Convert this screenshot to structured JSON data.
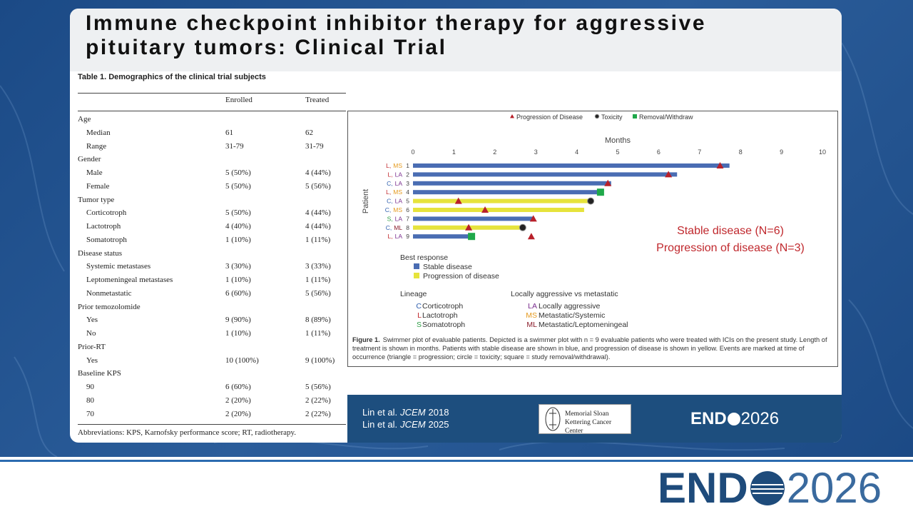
{
  "header": {
    "title": "Immune checkpoint inhibitor therapy for aggressive pituitary tumors: Clinical Trial"
  },
  "table": {
    "title": "Table 1.  Demographics of the clinical trial subjects",
    "headers": [
      "Enrolled",
      "Treated"
    ],
    "sections": [
      {
        "title": "Age",
        "rows": [
          [
            "Median",
            "61",
            "62"
          ],
          [
            "Range",
            "31-79",
            "31-79"
          ]
        ]
      },
      {
        "title": "Gender",
        "rows": [
          [
            "Male",
            "5 (50%)",
            "4 (44%)"
          ],
          [
            "Female",
            "5 (50%)",
            "5 (56%)"
          ]
        ]
      },
      {
        "title": "Tumor type",
        "rows": [
          [
            "Corticotroph",
            "5 (50%)",
            "4 (44%)"
          ],
          [
            "Lactotroph",
            "4 (40%)",
            "4 (44%)"
          ],
          [
            "Somatotroph",
            "1 (10%)",
            "1 (11%)"
          ]
        ]
      },
      {
        "title": "Disease status",
        "rows": [
          [
            "Systemic metastases",
            "3 (30%)",
            "3 (33%)"
          ],
          [
            "Leptomeningeal metastases",
            "1 (10%)",
            "1 (11%)"
          ],
          [
            "Nonmetastatic",
            "6 (60%)",
            "5 (56%)"
          ]
        ]
      },
      {
        "title": "Prior temozolomide",
        "rows": [
          [
            "Yes",
            "9 (90%)",
            "8 (89%)"
          ],
          [
            "No",
            "1 (10%)",
            "1 (11%)"
          ]
        ]
      },
      {
        "title": "Prior-RT",
        "rows": [
          [
            "Yes",
            "10 (100%)",
            "9 (100%)"
          ]
        ]
      },
      {
        "title": "Baseline KPS",
        "rows": [
          [
            "90",
            "6 (60%)",
            "5 (56%)"
          ],
          [
            "80",
            "2 (20%)",
            "2 (22%)"
          ],
          [
            "70",
            "2 (20%)",
            "2 (22%)"
          ]
        ]
      }
    ],
    "footnote": "Abbreviations: KPS, Karnofsky performance score; RT, radiotherapy."
  },
  "chart_data": {
    "type": "swimmer",
    "x_label": "Months",
    "y_label": "Patient",
    "xlim": [
      0,
      10
    ],
    "xticks": [
      0,
      1,
      2,
      3,
      4,
      5,
      6,
      7,
      8,
      9,
      10
    ],
    "categories": [
      1,
      2,
      3,
      4,
      5,
      6,
      7,
      8,
      9
    ],
    "patient_labels": [
      [
        "L,",
        "MS"
      ],
      [
        "L,",
        "LA"
      ],
      [
        "C,",
        "LA"
      ],
      [
        "L,",
        "MS"
      ],
      [
        "C,",
        "LA"
      ],
      [
        "C,",
        "MS"
      ],
      [
        "S,",
        "LA"
      ],
      [
        "C,",
        "ML"
      ],
      [
        "L,",
        "LA"
      ]
    ],
    "legend_title": "Best response",
    "series": [
      {
        "name": "Stable disease",
        "color": "#4a6db3",
        "values": [
          7.73,
          6.45,
          4.84,
          4.65,
          null,
          null,
          2.94,
          null,
          1.43
        ]
      },
      {
        "name": "Progression of disease",
        "color": "#e6e33c",
        "values": [
          null,
          null,
          null,
          null,
          4.34,
          4.18,
          null,
          2.68,
          null
        ]
      }
    ],
    "events": [
      {
        "name": "Progression of Disease",
        "color": "#b8202a",
        "marker": "triangle",
        "months": [
          7.5,
          6.24,
          4.76,
          1.11,
          1.76,
          2.94,
          1.36,
          2.89
        ],
        "patient": [
          1,
          2,
          3,
          5,
          6,
          7,
          8,
          9
        ]
      },
      {
        "name": "Toxicity",
        "color": "#222222",
        "marker": "circle",
        "months": [
          4.34,
          2.68
        ],
        "patient": [
          5,
          8
        ]
      },
      {
        "name": "Removal/Withdraw",
        "color": "#1fa84a",
        "marker": "square",
        "months": [
          4.58,
          1.43
        ],
        "patient": [
          4,
          9
        ]
      }
    ],
    "lineage_title": "Lineage",
    "lineage": [
      {
        "code": "C",
        "name": "Corticotroph",
        "color": "#2f5fae"
      },
      {
        "code": "L",
        "name": "Lactotroph",
        "color": "#c0282d"
      },
      {
        "code": "S",
        "name": "Somatotroph",
        "color": "#2e9e46"
      }
    ],
    "class_title": "Locally aggressive vs metastatic",
    "classes": [
      {
        "code": "LA",
        "name": "Locally aggressive",
        "color": "#7a2e8e"
      },
      {
        "code": "MS",
        "name": "Metastatic/Systemic",
        "color": "#e59a1e"
      },
      {
        "code": "ML",
        "name": "Metastatic/Leptomeningeal",
        "color": "#8a1c2a"
      }
    ],
    "annotations": [
      "Stable disease (N=6)",
      "Progression of disease (N=3)"
    ],
    "caption_label": "Figure 1.",
    "caption": "Swimmer plot of evaluable patients. Depicted is a swimmer plot with n = 9 evaluable patients who were treated with ICIs on the present study. Length of treatment is shown in months. Patients with stable disease are shown in blue, and progression of disease is shown in yellow. Events are marked at time of occurrence (triangle = progression; circle = toxicity; square = study removal/withdrawal)."
  },
  "footer": {
    "citations": [
      {
        "prefix": "Lin et al.",
        "journal": "JCEM",
        "year": "2018"
      },
      {
        "prefix": "Lin et al.",
        "journal": "JCEM",
        "year": "2025"
      }
    ],
    "institution": "Memorial Sloan Kettering Cancer Center",
    "logo_left": "END",
    "logo_right": "2026"
  }
}
